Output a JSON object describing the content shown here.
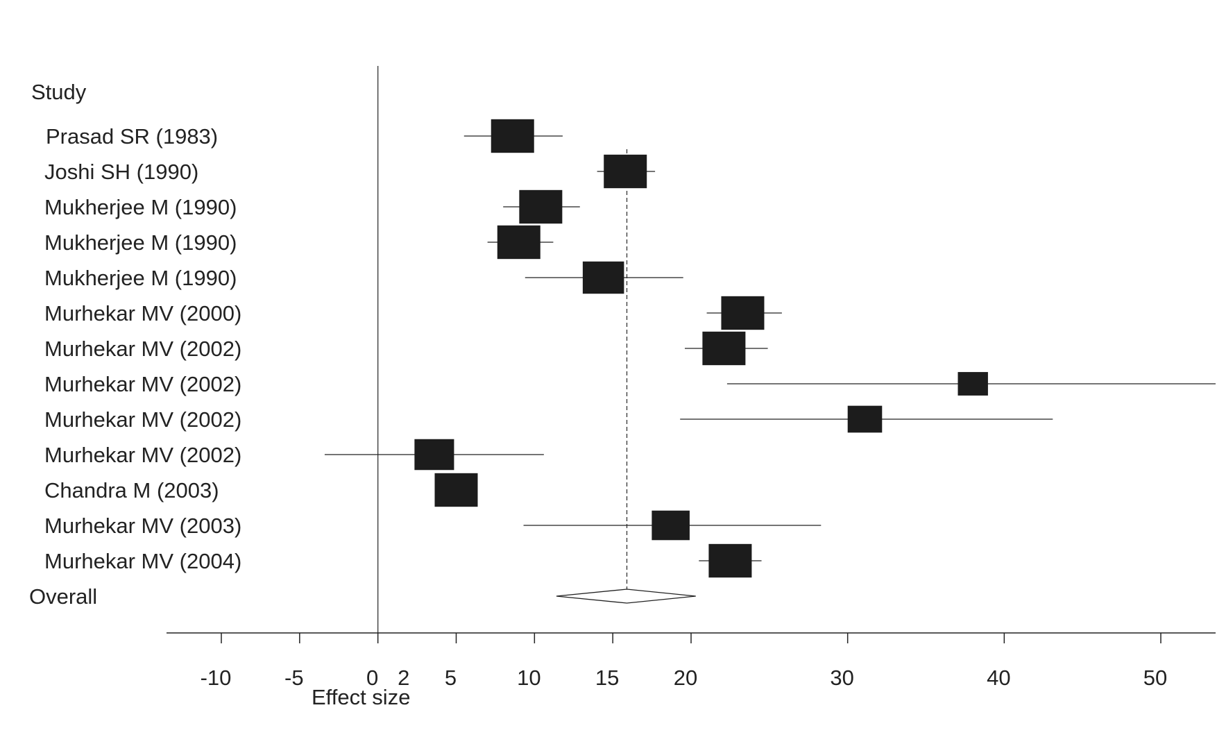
{
  "chart_data": {
    "type": "forest",
    "title": "",
    "header_label": "Study",
    "xlabel": "Effect size",
    "xlim": [
      -13.5,
      53.5
    ],
    "xticks": [
      -10,
      -5,
      0,
      2,
      5,
      10,
      15,
      20,
      30,
      40,
      50
    ],
    "zero_line": 0,
    "overall_line": 15.9,
    "grid": false,
    "studies": [
      {
        "name": "Prasad SR (1983)",
        "effect": 8.6,
        "lower": 5.5,
        "upper": 11.8,
        "weight": 1.0
      },
      {
        "name": "Joshi SH (1990)",
        "effect": 15.8,
        "lower": 14.0,
        "upper": 17.7,
        "weight": 1.0
      },
      {
        "name": "Mukherjee M (1990)",
        "effect": 10.4,
        "lower": 8.0,
        "upper": 12.9,
        "weight": 1.0
      },
      {
        "name": "Mukherjee M (1990)",
        "effect": 9.0,
        "lower": 7.0,
        "upper": 11.2,
        "weight": 1.0
      },
      {
        "name": "Mukherjee M (1990)",
        "effect": 14.4,
        "lower": 9.4,
        "upper": 19.5,
        "weight": 0.96
      },
      {
        "name": "Murhekar MV (2000)",
        "effect": 23.3,
        "lower": 21.0,
        "upper": 25.8,
        "weight": 1.0
      },
      {
        "name": "Murhekar MV (2002)",
        "effect": 22.1,
        "lower": 19.6,
        "upper": 24.9,
        "weight": 1.0
      },
      {
        "name": "Murhekar MV (2002)",
        "effect": 38.0,
        "lower": 22.3,
        "upper": 53.5,
        "weight": 0.7
      },
      {
        "name": "Murhekar MV (2002)",
        "effect": 31.1,
        "lower": 19.3,
        "upper": 43.1,
        "weight": 0.8
      },
      {
        "name": "Murhekar MV (2002)",
        "effect": 3.6,
        "lower": -3.4,
        "upper": 10.6,
        "weight": 0.92
      },
      {
        "name": "Chandra M (2003)",
        "effect": 5.0,
        "lower": 5.0,
        "upper": 5.0,
        "weight": 1.0
      },
      {
        "name": "Murhekar MV (2003)",
        "effect": 18.7,
        "lower": 9.3,
        "upper": 28.3,
        "weight": 0.88
      },
      {
        "name": "Murhekar MV (2004)",
        "effect": 22.5,
        "lower": 20.5,
        "upper": 24.5,
        "weight": 1.0
      }
    ],
    "overall": {
      "name": "Overall",
      "effect": 15.9,
      "lower": 11.4,
      "upper": 20.3
    }
  }
}
